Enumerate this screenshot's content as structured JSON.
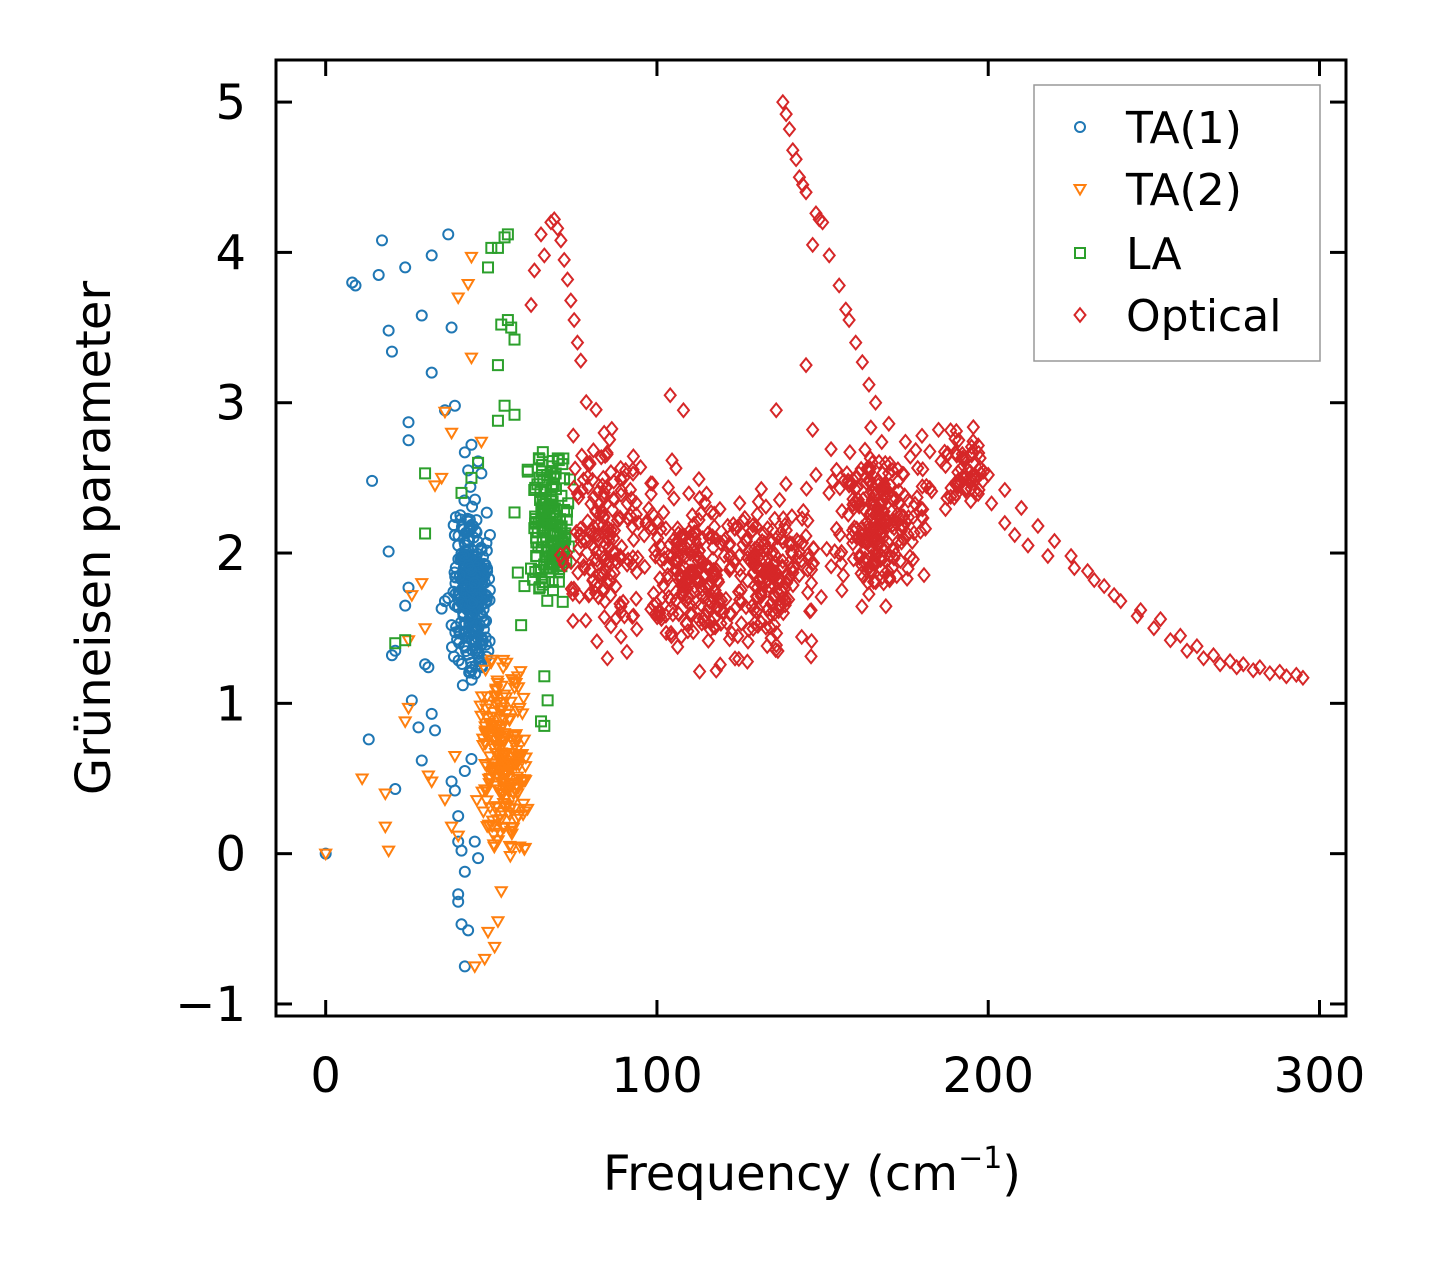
{
  "chart_data": {
    "type": "scatter",
    "xlabel": "Frequency (cm",
    "xlabel_sup": "−1",
    "xlabel_close": ")",
    "ylabel": "Grüneisen parameter",
    "xlim": [
      -15,
      308
    ],
    "ylim": [
      -1.08,
      5.28
    ],
    "xticks": [
      0,
      100,
      200,
      300
    ],
    "xtick_labels": [
      "0",
      "100",
      "200",
      "300"
    ],
    "yticks": [
      -1,
      0,
      1,
      2,
      3,
      4,
      5
    ],
    "ytick_labels": [
      "−1",
      "0",
      "1",
      "2",
      "3",
      "4",
      "5"
    ],
    "legend_position": "top-right",
    "series": [
      {
        "name": "TA(1)",
        "marker": "circle",
        "color": "#1f77b4",
        "points": [
          [
            0,
            0
          ],
          [
            8,
            3.8
          ],
          [
            9,
            3.78
          ],
          [
            16,
            3.85
          ],
          [
            17,
            4.08
          ],
          [
            19,
            3.48
          ],
          [
            20,
            3.34
          ],
          [
            24,
            3.9
          ],
          [
            25,
            2.87
          ],
          [
            25,
            2.75
          ],
          [
            29,
            3.58
          ],
          [
            32,
            3.98
          ],
          [
            32,
            3.2
          ],
          [
            36,
            2.95
          ],
          [
            37,
            4.12
          ],
          [
            38,
            3.5
          ],
          [
            39,
            2.98
          ],
          [
            14,
            2.48
          ],
          [
            19,
            2.01
          ],
          [
            20,
            1.32
          ],
          [
            21,
            1.35
          ],
          [
            24,
            1.65
          ],
          [
            25,
            1.77
          ],
          [
            26,
            1.02
          ],
          [
            28,
            0.84
          ],
          [
            29,
            0.62
          ],
          [
            30,
            1.26
          ],
          [
            31,
            1.24
          ],
          [
            32,
            0.93
          ],
          [
            33,
            0.82
          ],
          [
            35,
            1.63
          ],
          [
            36,
            1.68
          ],
          [
            37,
            1.7
          ],
          [
            38,
            1.52
          ],
          [
            39,
            2.12
          ],
          [
            40,
            2.05
          ],
          [
            42,
            2.67
          ],
          [
            43,
            2.55
          ],
          [
            13,
            0.76
          ],
          [
            21,
            0.43
          ],
          [
            44,
            2.72
          ],
          [
            46,
            2.61
          ],
          [
            47,
            2.53
          ],
          [
            38,
            0.48
          ],
          [
            39,
            0.42
          ],
          [
            40,
            0.25
          ],
          [
            40,
            0.08
          ],
          [
            41,
            0.02
          ],
          [
            42,
            -0.12
          ],
          [
            40,
            -0.27
          ],
          [
            40,
            -0.32
          ],
          [
            41,
            -0.47
          ],
          [
            43,
            -0.51
          ],
          [
            42,
            -0.75
          ],
          [
            45,
            0.08
          ],
          [
            46,
            -0.03
          ],
          [
            44,
            0.63
          ],
          [
            42,
            0.55
          ]
        ],
        "clusters": [
          {
            "x": [
              38,
              50
            ],
            "y": [
              1.0,
              2.5
            ],
            "n": 320
          }
        ]
      },
      {
        "name": "TA(2)",
        "marker": "triangle-down",
        "color": "#ff7f0e",
        "points": [
          [
            0,
            0
          ],
          [
            11,
            0.5
          ],
          [
            18,
            0.4
          ],
          [
            18,
            0.18
          ],
          [
            19,
            0.02
          ],
          [
            24,
            0.88
          ],
          [
            25,
            0.97
          ],
          [
            25,
            1.42
          ],
          [
            26,
            1.72
          ],
          [
            29,
            1.8
          ],
          [
            30,
            1.5
          ],
          [
            31,
            0.52
          ],
          [
            32,
            0.48
          ],
          [
            33,
            2.45
          ],
          [
            35,
            2.5
          ],
          [
            36,
            2.94
          ],
          [
            38,
            2.8
          ],
          [
            40,
            3.7
          ],
          [
            43,
            3.79
          ],
          [
            44,
            3.97
          ],
          [
            44,
            3.3
          ],
          [
            47,
            2.74
          ],
          [
            39,
            0.65
          ],
          [
            36,
            0.36
          ],
          [
            38,
            0.18
          ],
          [
            40,
            0.12
          ],
          [
            45,
            -0.75
          ],
          [
            48,
            -0.7
          ],
          [
            49,
            -0.52
          ],
          [
            51,
            -0.62
          ],
          [
            52,
            -0.45
          ],
          [
            53,
            -0.25
          ],
          [
            56,
            0.15
          ],
          [
            57,
            0.3
          ],
          [
            54,
            0.75
          ],
          [
            55,
            0.5
          ],
          [
            58,
            0.95
          ]
        ],
        "clusters": [
          {
            "x": [
              45,
              62
            ],
            "y": [
              -0.3,
              1.5
            ],
            "n": 220
          }
        ]
      },
      {
        "name": "LA",
        "marker": "square",
        "color": "#2ca02c",
        "points": [
          [
            30,
            2.53
          ],
          [
            30,
            2.13
          ],
          [
            24,
            1.42
          ],
          [
            21,
            1.4
          ],
          [
            41,
            2.4
          ],
          [
            44,
            2.5
          ],
          [
            46,
            2.6
          ],
          [
            49,
            3.9
          ],
          [
            50,
            4.03
          ],
          [
            52,
            4.03
          ],
          [
            54,
            4.1
          ],
          [
            55,
            4.12
          ],
          [
            52,
            3.25
          ],
          [
            53,
            3.52
          ],
          [
            55,
            3.55
          ],
          [
            56,
            3.5
          ],
          [
            57,
            3.42
          ],
          [
            52,
            2.88
          ],
          [
            54,
            2.98
          ],
          [
            57,
            2.92
          ],
          [
            57,
            2.27
          ],
          [
            58,
            1.87
          ],
          [
            59,
            1.52
          ],
          [
            60,
            1.78
          ],
          [
            65,
            0.88
          ],
          [
            66,
            0.85
          ],
          [
            67,
            1.02
          ],
          [
            66,
            1.18
          ]
        ],
        "clusters": [
          {
            "x": [
              60,
              75
            ],
            "y": [
              1.5,
              2.85
            ],
            "n": 160
          }
        ]
      },
      {
        "name": "Optical",
        "marker": "diamond",
        "color": "#d62728",
        "points": [
          [
            138,
            5.0
          ],
          [
            139,
            4.92
          ],
          [
            140,
            4.82
          ],
          [
            141,
            4.68
          ],
          [
            142,
            4.62
          ],
          [
            143,
            4.5
          ],
          [
            144,
            4.45
          ],
          [
            145,
            4.4
          ],
          [
            148,
            4.26
          ],
          [
            149,
            4.22
          ],
          [
            150,
            4.2
          ],
          [
            147,
            4.05
          ],
          [
            152,
            3.98
          ],
          [
            155,
            3.78
          ],
          [
            157,
            3.62
          ],
          [
            158,
            3.55
          ],
          [
            160,
            3.4
          ],
          [
            162,
            3.27
          ],
          [
            164,
            3.12
          ],
          [
            166,
            3.0
          ],
          [
            170,
            2.86
          ],
          [
            175,
            2.74
          ],
          [
            180,
            2.78
          ],
          [
            185,
            2.82
          ],
          [
            190,
            2.76
          ],
          [
            195,
            2.65
          ],
          [
            200,
            2.52
          ],
          [
            205,
            2.42
          ],
          [
            210,
            2.3
          ],
          [
            215,
            2.18
          ],
          [
            220,
            2.08
          ],
          [
            225,
            1.98
          ],
          [
            230,
            1.88
          ],
          [
            235,
            1.78
          ],
          [
            240,
            1.68
          ],
          [
            245,
            1.58
          ],
          [
            250,
            1.5
          ],
          [
            255,
            1.42
          ],
          [
            260,
            1.35
          ],
          [
            265,
            1.3
          ],
          [
            270,
            1.26
          ],
          [
            275,
            1.24
          ],
          [
            280,
            1.22
          ],
          [
            285,
            1.2
          ],
          [
            290,
            1.18
          ],
          [
            295,
            1.17
          ],
          [
            68,
            4.2
          ],
          [
            69,
            4.22
          ],
          [
            70,
            4.16
          ],
          [
            71,
            4.08
          ],
          [
            72,
            3.95
          ],
          [
            73,
            3.82
          ],
          [
            74,
            3.68
          ],
          [
            75,
            3.55
          ],
          [
            76,
            3.4
          ],
          [
            77,
            3.28
          ],
          [
            65,
            4.12
          ],
          [
            66,
            3.98
          ],
          [
            63,
            3.88
          ],
          [
            62,
            3.65
          ],
          [
            104,
            3.05
          ],
          [
            108,
            2.95
          ],
          [
            136,
            2.95
          ],
          [
            145,
            3.25
          ],
          [
            147,
            2.82
          ],
          [
            148,
            2.52
          ],
          [
            153,
            2.48
          ],
          [
            158,
            2.45
          ],
          [
            165,
            2.6
          ],
          [
            201,
            2.33
          ],
          [
            205,
            2.2
          ],
          [
            208,
            2.12
          ],
          [
            212,
            2.05
          ],
          [
            218,
            1.98
          ],
          [
            226,
            1.9
          ],
          [
            232,
            1.82
          ],
          [
            238,
            1.72
          ],
          [
            246,
            1.62
          ],
          [
            252,
            1.56
          ],
          [
            258,
            1.45
          ],
          [
            263,
            1.38
          ],
          [
            268,
            1.32
          ],
          [
            273,
            1.28
          ],
          [
            277,
            1.26
          ],
          [
            282,
            1.24
          ],
          [
            288,
            1.21
          ],
          [
            293,
            1.19
          ]
        ],
        "clusters": [
          {
            "x": [
              70,
              100
            ],
            "y": [
              1.2,
              3.1
            ],
            "n": 180
          },
          {
            "x": [
              95,
              125
            ],
            "y": [
              1.0,
              2.8
            ],
            "n": 220
          },
          {
            "x": [
              120,
              150
            ],
            "y": [
              1.1,
              2.6
            ],
            "n": 200
          },
          {
            "x": [
              150,
              185
            ],
            "y": [
              1.5,
              2.95
            ],
            "n": 240
          },
          {
            "x": [
              185,
              200
            ],
            "y": [
              2.2,
              2.9
            ],
            "n": 60
          }
        ]
      }
    ]
  }
}
